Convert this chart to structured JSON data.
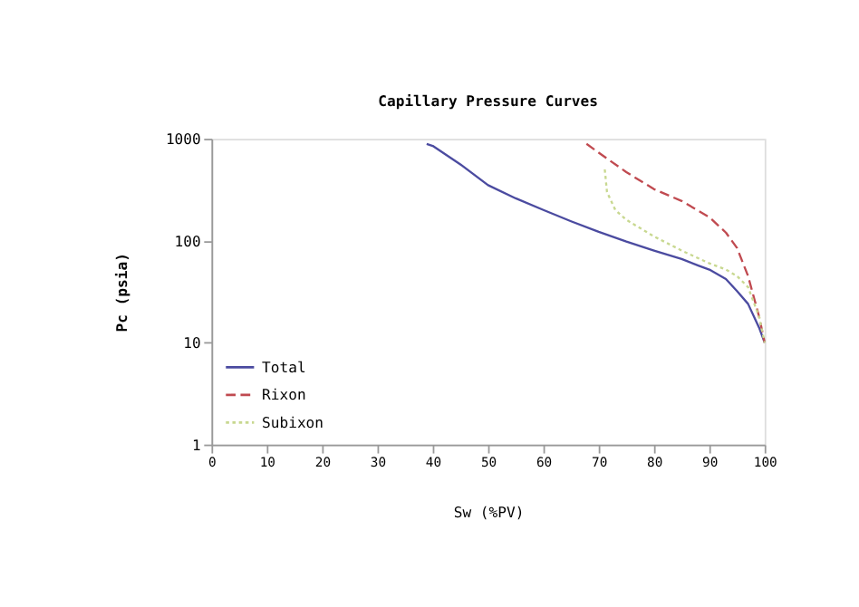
{
  "chart_data": {
    "type": "line",
    "title": "Capillary Pressure Curves",
    "xlabel": "Sw (%PV)",
    "ylabel": "Pc (psia)",
    "xlim": [
      0,
      100
    ],
    "xticks": [
      0,
      10,
      20,
      30,
      40,
      50,
      60,
      70,
      80,
      90,
      100
    ],
    "ylim": [
      1,
      1000
    ],
    "yticks": [
      1,
      10,
      100,
      1000
    ],
    "log": "y",
    "grid": false,
    "legend": "bottom left",
    "marker": "none",
    "series": [
      {
        "name": "Total",
        "color": "#4b4ba0",
        "line_style": "solid",
        "x": [
          38.9,
          40,
          45,
          50,
          55,
          60,
          65,
          70,
          75,
          80,
          85,
          88,
          90,
          93,
          95,
          97,
          99,
          100
        ],
        "values": [
          890,
          850,
          560,
          350,
          260,
          200,
          155,
          122,
          98,
          80,
          66,
          57,
          52,
          42,
          32,
          24,
          14,
          10
        ]
      },
      {
        "name": "Rixon",
        "color": "#c04a50",
        "line_style": "dashed",
        "x": [
          67.8,
          70,
          75,
          80,
          85,
          90,
          93,
          95,
          97,
          99,
          100
        ],
        "values": [
          890,
          730,
          470,
          320,
          245,
          170,
          120,
          85,
          45,
          18,
          10
        ]
      },
      {
        "name": "Subixon",
        "color": "#c8d890",
        "line_style": "dotted",
        "x": [
          71.1,
          71.5,
          73,
          75,
          80,
          85,
          90,
          93,
          95,
          97,
          99,
          100
        ],
        "values": [
          500,
          300,
          200,
          160,
          110,
          80,
          60,
          52,
          45,
          35,
          18,
          10
        ]
      }
    ]
  }
}
